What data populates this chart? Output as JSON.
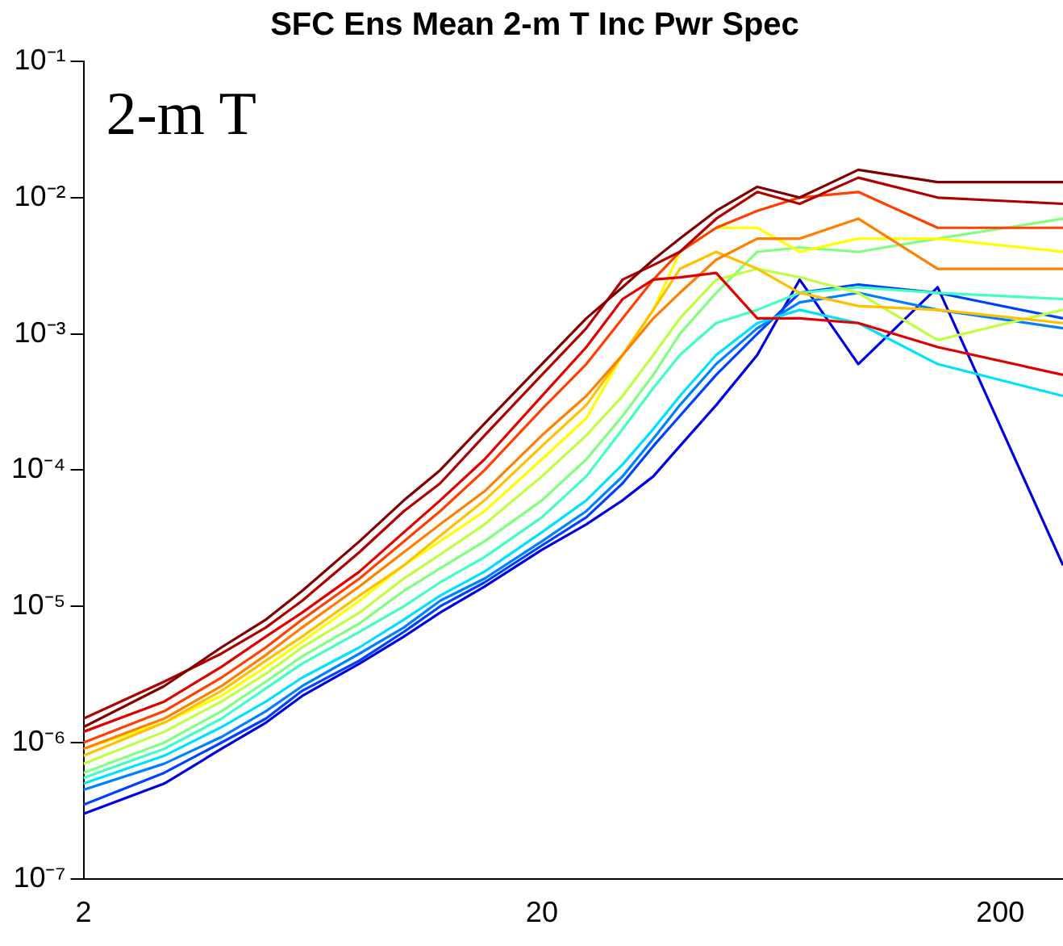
{
  "chart_data": {
    "type": "line",
    "title": "SFC Ens Mean 2-m T Inc Pwr Spec",
    "annotations": [
      "2-m T"
    ],
    "log": "xy",
    "grid": false,
    "legend": false,
    "marker": "none",
    "line_style": "solid",
    "x": [
      2,
      3,
      4,
      5,
      6,
      8,
      10,
      12,
      15,
      20,
      25,
      30,
      35,
      40,
      48,
      59,
      73,
      98,
      146,
      274
    ],
    "xlim": [
      2,
      274
    ],
    "xticks": [
      2,
      20,
      200
    ],
    "ylim": [
      1e-07,
      0.1
    ],
    "yticks": [
      {
        "value": 1e-07,
        "label": "10⁻⁷"
      },
      {
        "value": 1e-06,
        "label": "10⁻⁶"
      },
      {
        "value": 1e-05,
        "label": "10⁻⁵"
      },
      {
        "value": 0.0001,
        "label": "10⁻⁴"
      },
      {
        "value": 0.001,
        "label": "10⁻³"
      },
      {
        "value": 0.01,
        "label": "10⁻²"
      },
      {
        "value": 0.1,
        "label": "10⁻¹"
      }
    ],
    "series": [
      {
        "color": "#800000",
        "values": [
          1.3e-06,
          2.6e-06,
          5e-06,
          8e-06,
          1.3e-05,
          3e-05,
          6e-05,
          0.0001,
          0.00022,
          0.0006,
          0.0013,
          0.0022,
          0.0035,
          0.005,
          0.008,
          0.012,
          0.01,
          0.016,
          0.013,
          0.013
        ]
      },
      {
        "color": "#b00000",
        "values": [
          1.5e-06,
          2.8e-06,
          4.5e-06,
          7e-06,
          1.1e-05,
          2.5e-05,
          5e-05,
          8e-05,
          0.00018,
          0.0005,
          0.0011,
          0.0025,
          0.0032,
          0.004,
          0.007,
          0.011,
          0.009,
          0.014,
          0.01,
          0.009
        ]
      },
      {
        "color": "#e00000",
        "values": [
          1.2e-06,
          2e-06,
          3.6e-06,
          6e-06,
          9e-06,
          1.8e-05,
          3.5e-05,
          6e-05,
          0.00012,
          0.00035,
          0.0008,
          0.0018,
          0.0025,
          0.0026,
          0.0028,
          0.0013,
          0.0013,
          0.0012,
          0.0008,
          0.0005
        ]
      },
      {
        "color": "#ff4000",
        "values": [
          1e-06,
          1.7e-06,
          3e-06,
          5e-06,
          8e-06,
          1.6e-05,
          3e-05,
          5e-05,
          0.0001,
          0.00028,
          0.0006,
          0.0013,
          0.0025,
          0.004,
          0.006,
          0.008,
          0.01,
          0.011,
          0.006,
          0.006
        ]
      },
      {
        "color": "#ff8000",
        "values": [
          9e-07,
          1.5e-06,
          2.6e-06,
          4.4e-06,
          7e-06,
          1.4e-05,
          2.5e-05,
          4e-05,
          7e-05,
          0.00018,
          0.00035,
          0.0007,
          0.0013,
          0.002,
          0.0035,
          0.005,
          0.005,
          0.007,
          0.003,
          0.003
        ]
      },
      {
        "color": "#ffc000",
        "values": [
          8e-07,
          1.4e-06,
          2.4e-06,
          4e-06,
          6e-06,
          1.2e-05,
          2e-05,
          3.3e-05,
          6e-05,
          0.00015,
          0.0003,
          0.0007,
          0.0015,
          0.003,
          0.004,
          0.003,
          0.002,
          0.0016,
          0.0015,
          0.0012
        ]
      },
      {
        "color": "#ffff00",
        "values": [
          9e-07,
          1.4e-06,
          2.2e-06,
          3.6e-06,
          5.5e-06,
          1.1e-05,
          2e-05,
          3e-05,
          5e-05,
          0.00012,
          0.00024,
          0.0007,
          0.0015,
          0.004,
          0.006,
          0.006,
          0.004,
          0.005,
          0.005,
          0.004
        ]
      },
      {
        "color": "#c0ff40",
        "values": [
          7e-07,
          1.2e-06,
          2e-06,
          3.2e-06,
          5e-06,
          9e-06,
          1.6e-05,
          2.4e-05,
          4e-05,
          9e-05,
          0.00018,
          0.00035,
          0.0007,
          0.0013,
          0.0025,
          0.003,
          0.0026,
          0.002,
          0.0009,
          0.0015
        ]
      },
      {
        "color": "#80ff80",
        "values": [
          6e-07,
          1e-06,
          1.7e-06,
          2.8e-06,
          4.3e-06,
          7.5e-06,
          1.3e-05,
          1.9e-05,
          3e-05,
          6e-05,
          0.00012,
          0.00025,
          0.0005,
          0.001,
          0.002,
          0.004,
          0.0043,
          0.004,
          0.005,
          0.007
        ]
      },
      {
        "color": "#40ffc0",
        "values": [
          5.5e-07,
          9e-07,
          1.5e-06,
          2.5e-06,
          3.8e-06,
          6.5e-06,
          1e-05,
          1.5e-05,
          2.3e-05,
          4.5e-05,
          9e-05,
          0.0002,
          0.0004,
          0.0007,
          0.0012,
          0.0015,
          0.002,
          0.0022,
          0.002,
          0.0018
        ]
      },
      {
        "color": "#00e0ff",
        "values": [
          5e-07,
          8e-07,
          1.3e-06,
          2e-06,
          3e-06,
          5e-06,
          8e-06,
          1.2e-05,
          1.8e-05,
          3.5e-05,
          6e-05,
          0.00011,
          0.0002,
          0.00035,
          0.0007,
          0.0012,
          0.0015,
          0.0012,
          0.0006,
          0.00035
        ]
      },
      {
        "color": "#0080ff",
        "values": [
          4.5e-07,
          7e-07,
          1.1e-06,
          1.7e-06,
          2.6e-06,
          4.5e-06,
          7e-06,
          1.1e-05,
          1.6e-05,
          3e-05,
          5e-05,
          9e-05,
          0.00017,
          0.0003,
          0.0006,
          0.0011,
          0.0017,
          0.002,
          0.0015,
          0.0011
        ]
      },
      {
        "color": "#0040ff",
        "values": [
          3.5e-07,
          6e-07,
          1e-06,
          1.5e-06,
          2.4e-06,
          4e-06,
          6.5e-06,
          1e-05,
          1.5e-05,
          2.8e-05,
          4.5e-05,
          8e-05,
          0.00015,
          0.00025,
          0.0005,
          0.001,
          0.002,
          0.0023,
          0.002,
          0.0013
        ]
      },
      {
        "color": "#0000e0",
        "values": [
          3e-07,
          5e-07,
          9e-07,
          1.4e-06,
          2.2e-06,
          3.8e-06,
          6e-06,
          9e-06,
          1.4e-05,
          2.6e-05,
          4e-05,
          6e-05,
          9e-05,
          0.00015,
          0.0003,
          0.0007,
          0.0025,
          0.0006,
          0.0022,
          2e-05
        ]
      }
    ]
  }
}
